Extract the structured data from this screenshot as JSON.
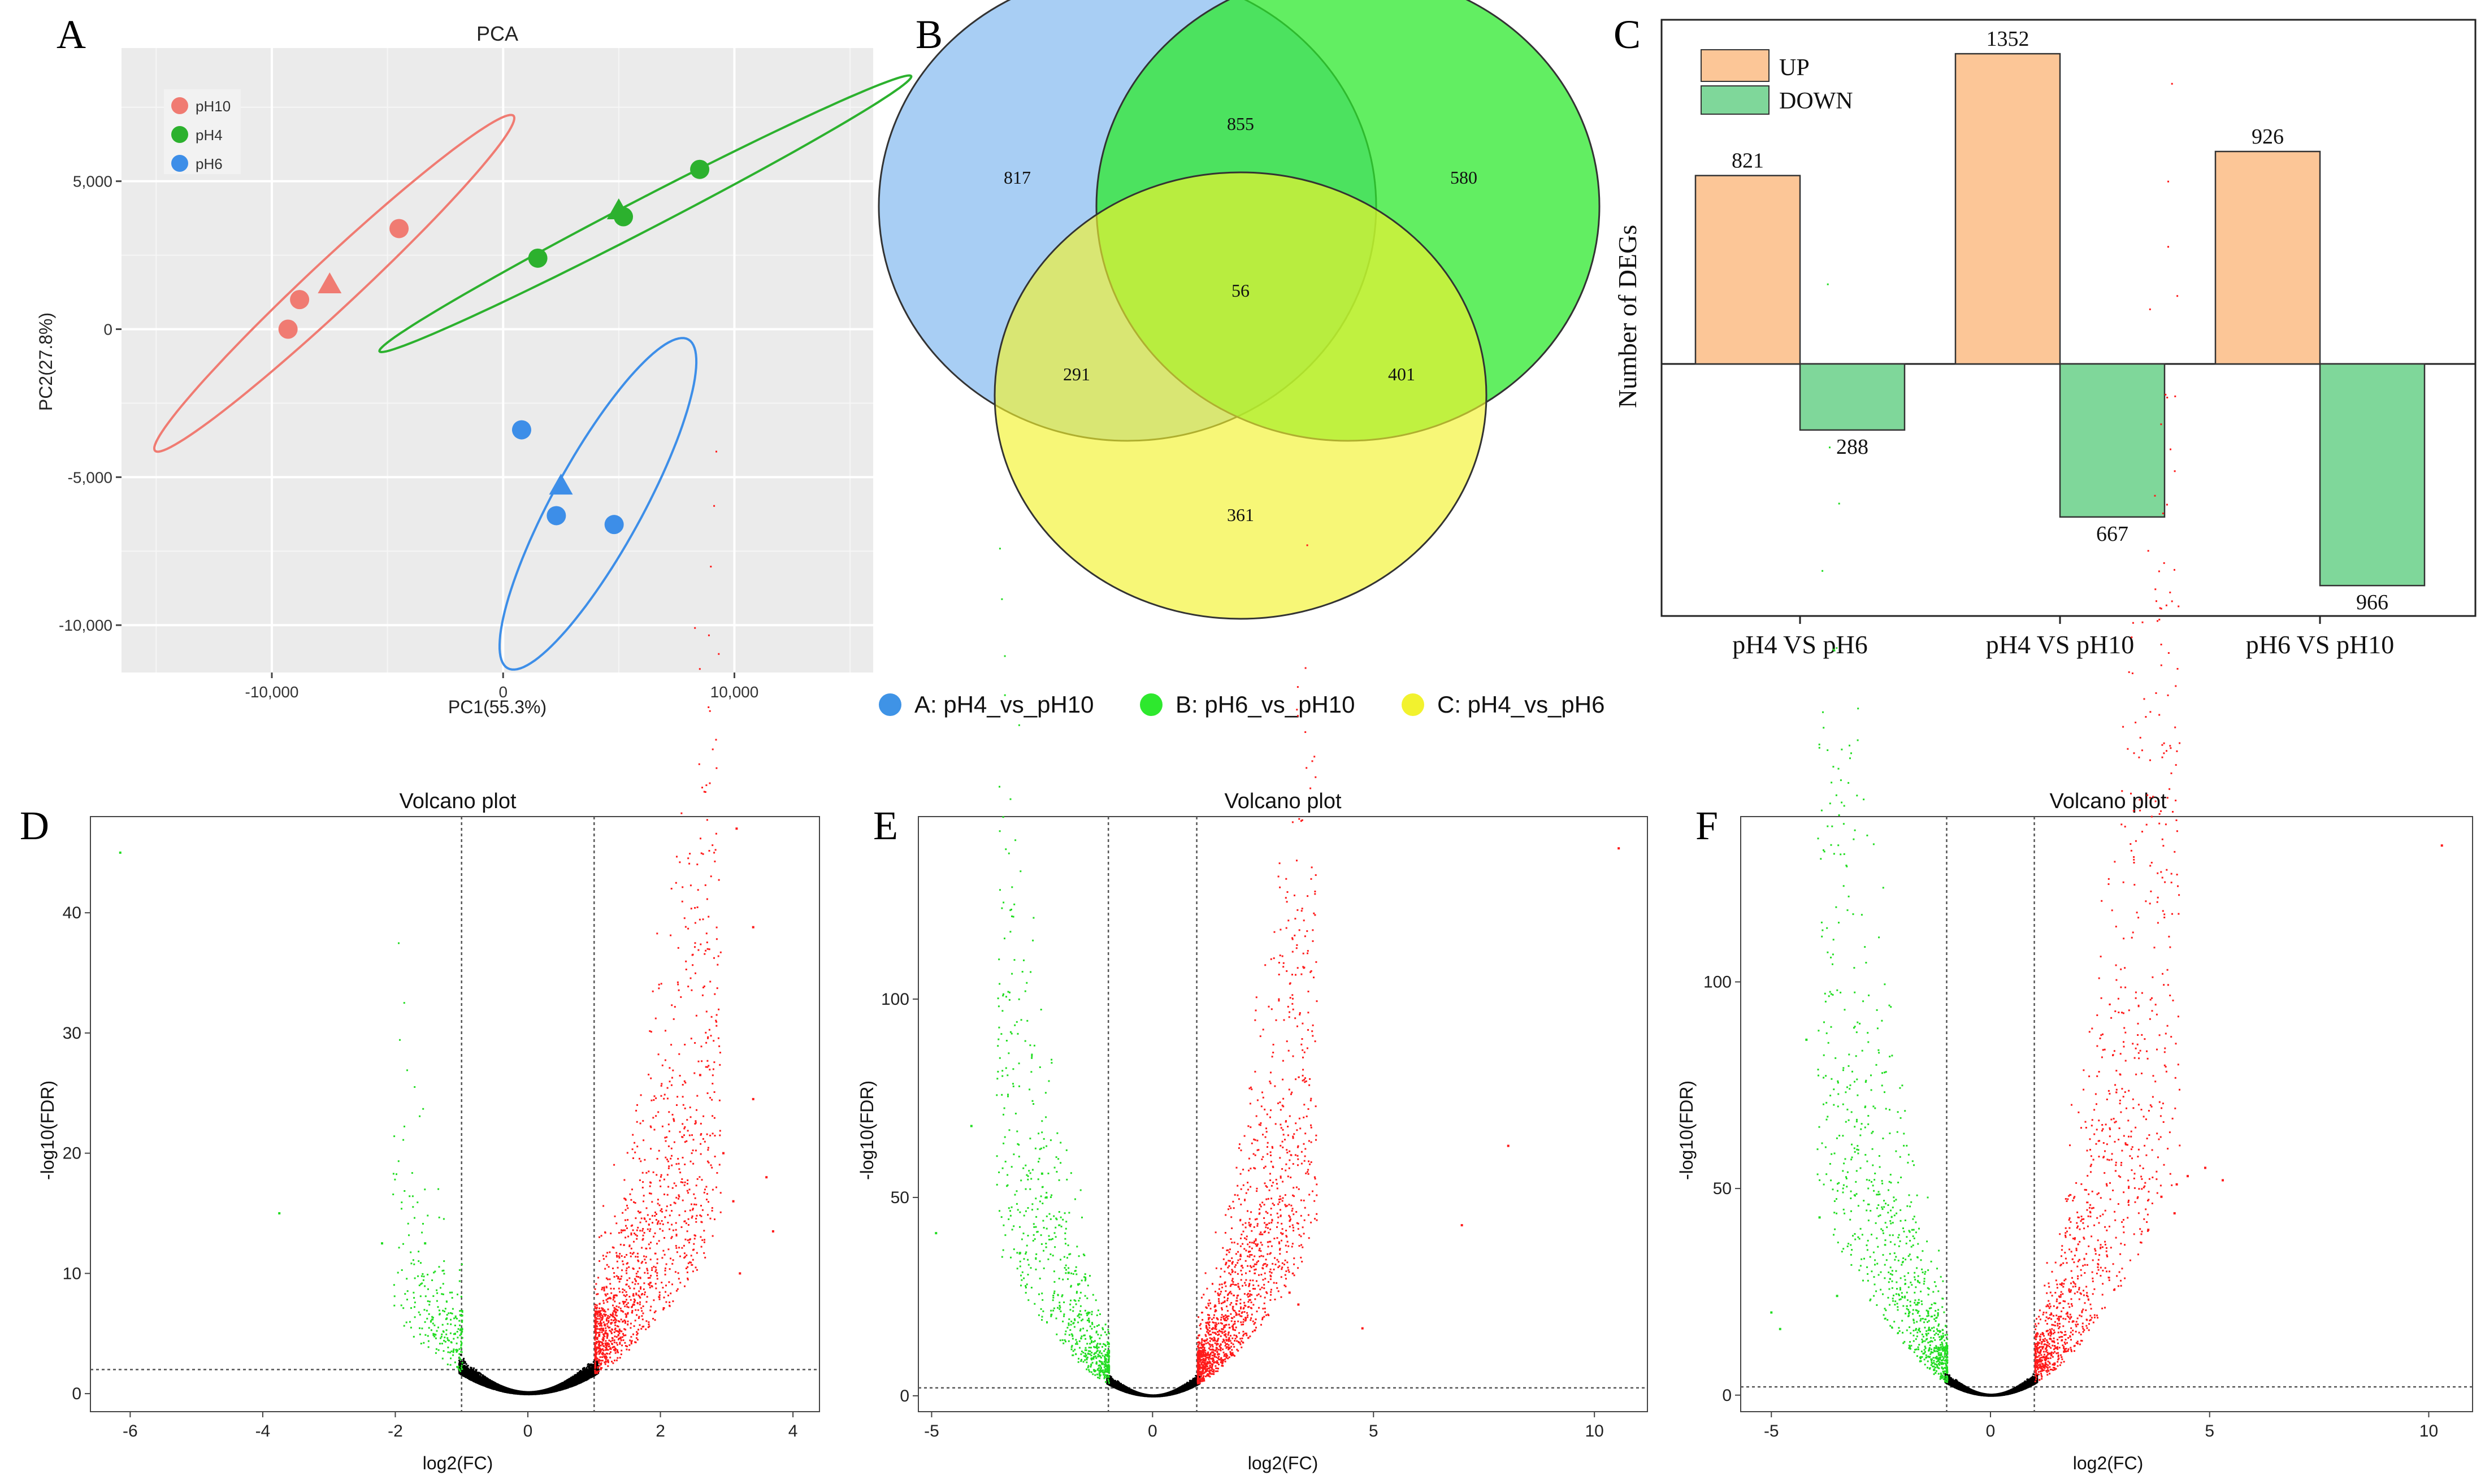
{
  "panel_letters": [
    "A",
    "B",
    "C",
    "D",
    "E",
    "F"
  ],
  "chart_data": [
    {
      "id": "pca",
      "type": "scatter",
      "title": "PCA",
      "xlabel": "PC1(55.3%)",
      "ylabel": "PC2(27.8%)",
      "xlim": [
        -16500,
        16000
      ],
      "ylim": [
        -11600,
        9500
      ],
      "xticks": [
        -10000,
        0,
        10000
      ],
      "xtick_labels": [
        "-10,000",
        "0",
        "10,000"
      ],
      "yticks": [
        5000,
        0,
        -5000,
        -10000
      ],
      "ytick_labels": [
        "5,000",
        "0",
        "-5,000",
        "-10,000"
      ],
      "legend": [
        "pH10",
        "pH4",
        "pH6"
      ],
      "series": [
        {
          "name": "pH10",
          "color": "#f07b72",
          "circles": [
            [
              -9300,
              0
            ],
            [
              -8800,
              1000
            ],
            [
              -4500,
              3400
            ]
          ],
          "triangle": [
            -7500,
            1500
          ],
          "ellipse": {
            "cx": -7300,
            "cy": 1550,
            "semi_major": 9600,
            "semi_minor": 900,
            "angle_deg": 36
          }
        },
        {
          "name": "pH4",
          "color": "#2cb12e",
          "circles": [
            [
              1500,
              2400
            ],
            [
              5200,
              3800
            ],
            [
              8500,
              5400
            ]
          ],
          "triangle": [
            5000,
            4000
          ],
          "ellipse": {
            "cx": 6150,
            "cy": 3900,
            "semi_major": 12400,
            "semi_minor": 550,
            "angle_deg": 22
          }
        },
        {
          "name": "pH6",
          "color": "#3d8ee8",
          "circles": [
            [
              800,
              -3400
            ],
            [
              2300,
              -6300
            ],
            [
              4800,
              -6600
            ]
          ],
          "triangle": [
            2500,
            -5300
          ],
          "ellipse": {
            "cx": 4100,
            "cy": -5900,
            "semi_major": 6800,
            "semi_minor": 1800,
            "angle_deg": 54
          }
        }
      ]
    },
    {
      "id": "venn",
      "type": "venn",
      "sets": [
        {
          "key": "A",
          "label": "A: pH4_vs_pH10",
          "color": "#3f93e6"
        },
        {
          "key": "B",
          "label": "B: pH6_vs_pH10",
          "color": "#2ee82e"
        },
        {
          "key": "C",
          "label": "C: pH4_vs_pH6",
          "color": "#f2f22e"
        }
      ],
      "regions": {
        "A_only": 817,
        "A_B": 855,
        "B_only": 580,
        "A_B_C": 56,
        "A_C": 291,
        "B_C": 401,
        "C_only": 361
      }
    },
    {
      "id": "degs",
      "type": "bar",
      "ylabel": "Number of DEGs",
      "categories": [
        "pH4 VS pH6",
        "pH4 VS pH10",
        "pH6 VS pH10"
      ],
      "series": [
        {
          "name": "UP",
          "color": "#fcc697",
          "values": [
            821,
            1352,
            926
          ]
        },
        {
          "name": "DOWN",
          "color": "#7fd79a",
          "values": [
            288,
            667,
            966
          ]
        }
      ],
      "ylim": [
        -1090,
        1500
      ]
    },
    {
      "id": "volcano_d",
      "type": "scatter",
      "title": "Volcano plot",
      "xlabel": "log2(FC)",
      "ylabel": "-log10(FDR)",
      "xlim": [
        -6.6,
        4.4
      ],
      "ylim": [
        -1.5,
        48
      ],
      "xticks": [
        -6,
        -4,
        -2,
        0,
        2,
        4
      ],
      "yticks": [
        0,
        10,
        20,
        30,
        40
      ],
      "fc_threshold": 1,
      "fdr_threshold": 2,
      "outliers_up": [
        [
          3.15,
          47
        ],
        [
          3.4,
          38.8
        ],
        [
          3.4,
          24.5
        ],
        [
          3.6,
          18
        ],
        [
          3.7,
          13.5
        ],
        [
          2.6,
          26.5
        ],
        [
          2.95,
          20
        ],
        [
          3.1,
          16
        ],
        [
          3.2,
          10
        ]
      ],
      "outliers_down": [
        [
          -6.15,
          45
        ],
        [
          -3.75,
          15
        ],
        [
          -2.2,
          12.5
        ],
        [
          -1.55,
          12.5
        ]
      ]
    },
    {
      "id": "volcano_e",
      "type": "scatter",
      "title": "Volcano plot",
      "xlabel": "log2(FC)",
      "ylabel": "-log10(FDR)",
      "xlim": [
        -5.3,
        11.2
      ],
      "ylim": [
        -4,
        146
      ],
      "xticks": [
        -5,
        0,
        5,
        10
      ],
      "yticks": [
        0,
        50,
        100
      ],
      "fc_threshold": 1,
      "fdr_threshold": 2,
      "outliers_up": [
        [
          10.55,
          138
        ],
        [
          8.05,
          63
        ],
        [
          7,
          43
        ],
        [
          4.75,
          17
        ],
        [
          3.1,
          26
        ],
        [
          3.3,
          23
        ]
      ],
      "outliers_down": [
        [
          -4.1,
          68
        ],
        [
          -2.5,
          56
        ],
        [
          -2.4,
          50
        ],
        [
          -4.9,
          41
        ],
        [
          -3.0,
          36
        ],
        [
          -1.9,
          31
        ]
      ]
    },
    {
      "id": "volcano_f",
      "type": "scatter",
      "title": "Volcano plot",
      "xlabel": "log2(FC)",
      "ylabel": "-log10(FDR)",
      "xlim": [
        -5.7,
        11.0
      ],
      "ylim": [
        -4,
        140
      ],
      "xticks": [
        -5,
        0,
        5,
        10
      ],
      "yticks": [
        0,
        50,
        100
      ],
      "fc_threshold": 1,
      "fdr_threshold": 2,
      "outliers_up": [
        [
          10.3,
          133
        ],
        [
          5.3,
          52
        ],
        [
          4.9,
          55
        ],
        [
          4.5,
          53
        ],
        [
          4.25,
          51
        ],
        [
          4.2,
          44
        ],
        [
          3.9,
          48
        ],
        [
          3.6,
          40
        ]
      ],
      "outliers_down": [
        [
          -4.2,
          86
        ],
        [
          -3.9,
          43
        ],
        [
          -5.0,
          20
        ],
        [
          -4.8,
          16
        ],
        [
          -3.5,
          24
        ]
      ]
    }
  ]
}
